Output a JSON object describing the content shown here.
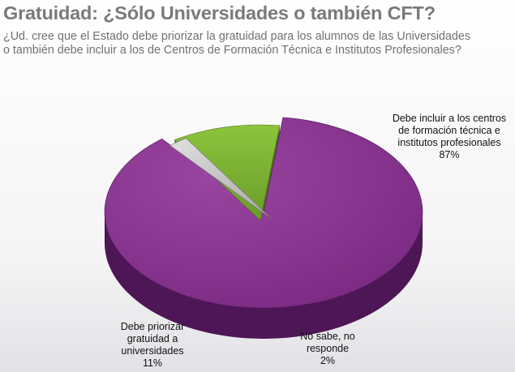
{
  "header": {
    "title": "Gratuidad: ¿Sólo Universidades o también CFT?",
    "question": "¿Ud. cree que el Estado debe priorizar la gratuidad para los alumnos de las Universidades o también debe incluir a los de Centros de Formación Técnica e Institutos Profesionales?"
  },
  "chart_data": {
    "type": "pie",
    "title": "",
    "slices": [
      {
        "label": [
          "Debe incluir a los centros",
          "de formación técnica e",
          "institutos profesionales"
        ],
        "value": 87,
        "value_label": "87%",
        "color": "#7c2b83",
        "side_color": "#4f1657"
      },
      {
        "label": [
          "Debe priorizar",
          "gratuidad a",
          "universidades"
        ],
        "value": 11,
        "value_label": "11%",
        "color": "#76a832",
        "side_color": "#4a6e1b"
      },
      {
        "label": [
          "No sabe, no",
          "responde"
        ],
        "value": 2,
        "value_label": "2%",
        "color": "#c2c2c2",
        "side_color": "#6e6e6e"
      }
    ]
  }
}
